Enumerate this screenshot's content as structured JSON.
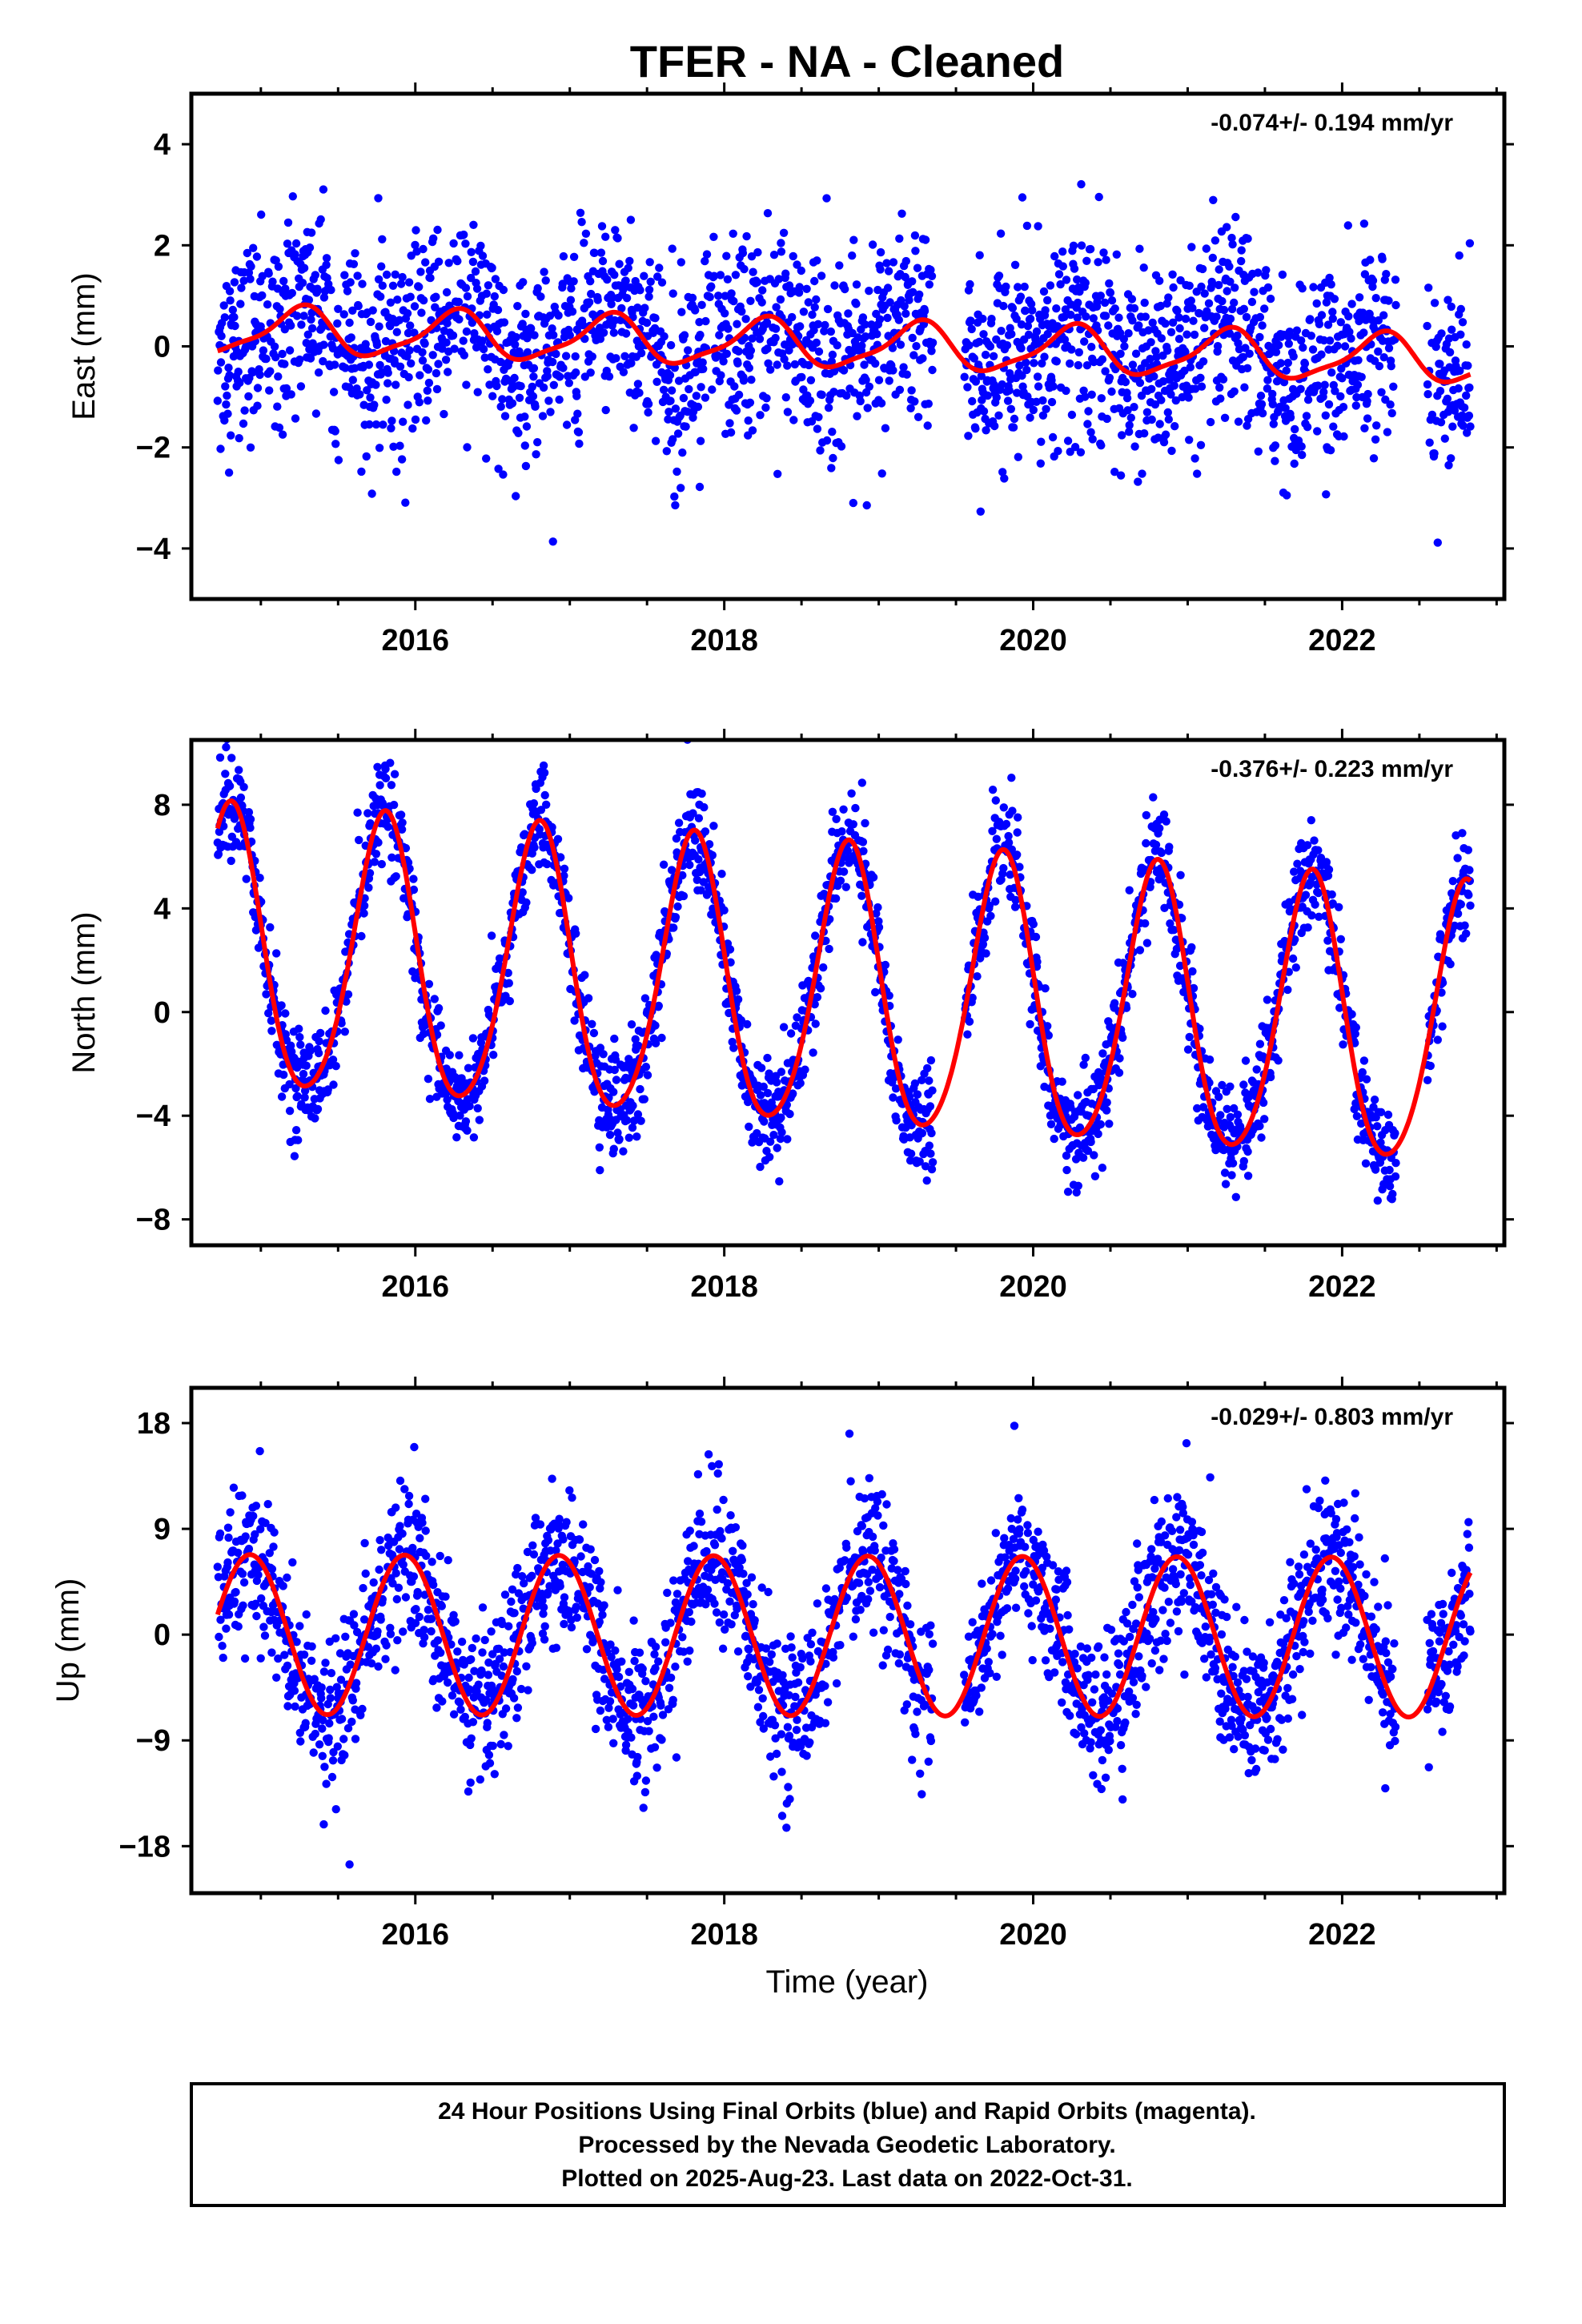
{
  "chart_data": {
    "type": "scatter",
    "title": "TFER  - NA - Cleaned",
    "xlabel": "Time (year)",
    "xlim": [
      2014.55,
      2023.05
    ],
    "xticks": [
      "2016",
      "2018",
      "2020",
      "2022"
    ],
    "grid": false,
    "series_styles": {
      "observed": {
        "color": "#0000ff",
        "label": "24 Hour Positions (blue dots)"
      },
      "model": {
        "color": "#ff0000",
        "label": "fitted model (red line)"
      }
    },
    "data_start": 2014.72,
    "data_end": 2022.83,
    "panels": [
      {
        "name": "East",
        "ylabel": "East (mm)",
        "ylim": [
          -5,
          5
        ],
        "yticks": [
          "4",
          "2",
          "0",
          "−2",
          "−4"
        ],
        "rate_text": "-0.074+/- 0.194 mm/yr",
        "model": {
          "offset": 0.3,
          "trend": -0.074,
          "annual_amp": 0.45,
          "annual_phase": 0.0,
          "semiannual_amp": 0.12
        },
        "scatter_sigma": 0.95,
        "gaps": [
          [
            2019.35,
            2019.55
          ],
          [
            2022.35,
            2022.55
          ]
        ]
      },
      {
        "name": "North",
        "ylabel": "North (mm)",
        "ylim": [
          -9,
          10.5
        ],
        "yticks": [
          "8",
          "4",
          "0",
          "−4",
          "−8"
        ],
        "rate_text": "-0.376+/- 0.223 mm/yr",
        "model": {
          "offset": 2.1,
          "trend": -0.376,
          "annual_amp": 5.4,
          "annual_phase": 0.55,
          "semiannual_amp": 0.6
        },
        "scatter_sigma": 1.0,
        "gaps": [
          [
            2019.35,
            2019.55
          ],
          [
            2022.35,
            2022.55
          ]
        ]
      },
      {
        "name": "Up",
        "ylabel": "Up (mm)",
        "ylim": [
          -22,
          21
        ],
        "yticks": [
          "18",
          "9",
          "0",
          "−9",
          "−18"
        ],
        "rate_text": "-0.029+/- 0.803 mm/yr",
        "model": {
          "offset": 0.0,
          "trend": -0.029,
          "annual_amp": 6.8,
          "annual_phase": 0.68,
          "semiannual_amp": 0.0
        },
        "scatter_sigma": 3.2,
        "gaps": [
          [
            2019.35,
            2019.55
          ],
          [
            2022.35,
            2022.55
          ]
        ]
      }
    ],
    "footer_lines": [
      "24 Hour Positions Using Final Orbits (blue) and Rapid Orbits (magenta).",
      "Processed by the Nevada Geodetic Laboratory.",
      "Plotted on 2025-Aug-23. Last data on 2022-Oct-31."
    ]
  }
}
